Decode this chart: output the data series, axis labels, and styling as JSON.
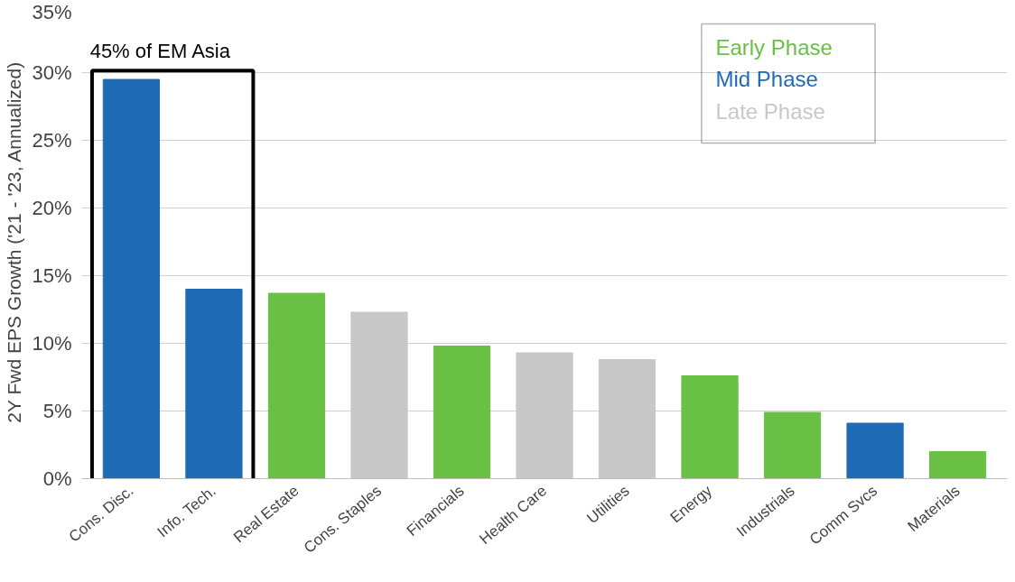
{
  "chart_data": {
    "type": "bar",
    "ylabel": "2Y Fwd EPS Growth ('21 - '23, Annualized)",
    "categories": [
      "Cons. Disc.",
      "Info. Tech.",
      "Real Estate",
      "Cons. Staples",
      "Financials",
      "Health Care",
      "Utilities",
      "Energy",
      "Industrials",
      "Comm Svcs",
      "Materials"
    ],
    "series": [
      {
        "name": "Early Phase",
        "color": "#6abf45",
        "values": [
          null,
          null,
          13.7,
          null,
          9.8,
          null,
          null,
          7.6,
          4.9,
          null,
          2.0
        ]
      },
      {
        "name": "Mid Phase",
        "color": "#1f6bb5",
        "values": [
          29.5,
          14.0,
          null,
          null,
          null,
          null,
          null,
          null,
          null,
          4.1,
          null
        ]
      },
      {
        "name": "Late Phase",
        "color": "#c8c8c8",
        "values": [
          null,
          null,
          null,
          12.3,
          null,
          9.3,
          8.8,
          null,
          null,
          null,
          null
        ]
      }
    ],
    "annotations": [
      {
        "text": "45% of EM Asia",
        "x": "Cons. Disc.",
        "y": 29.5
      }
    ],
    "ylim": [
      0,
      35
    ],
    "yticks": [
      {
        "value": 0,
        "label": "0%"
      },
      {
        "value": 5,
        "label": "5%"
      },
      {
        "value": 10,
        "label": "10%"
      },
      {
        "value": 15,
        "label": "15%"
      },
      {
        "value": 20,
        "label": "20%"
      },
      {
        "value": 25,
        "label": "25%"
      },
      {
        "value": 30,
        "label": "30%"
      },
      {
        "value": 35,
        "label": "35%"
      }
    ],
    "grid": "y",
    "legend": "top right"
  }
}
